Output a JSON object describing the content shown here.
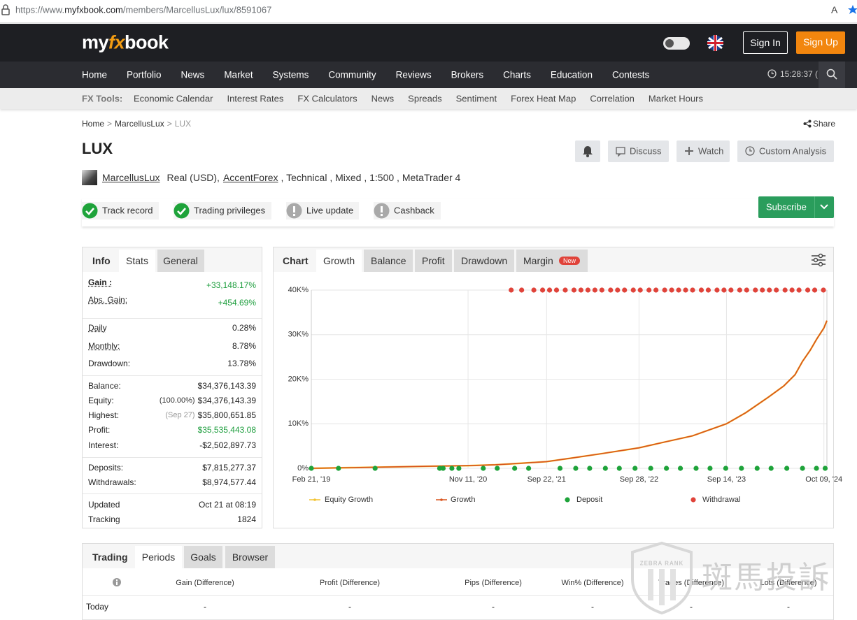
{
  "browser": {
    "url_prefix": "https://www.",
    "url_domain": "myfxbook.com",
    "url_path": "/members/MarcellusLux/lux/8591067"
  },
  "header": {
    "logo_my": "my",
    "logo_fx": "fx",
    "logo_book": "book",
    "sign_in": "Sign In",
    "sign_up": "Sign Up",
    "time": "15:28:37 ("
  },
  "nav": [
    "Home",
    "Portfolio",
    "News",
    "Market",
    "Systems",
    "Community",
    "Reviews",
    "Brokers",
    "Charts",
    "Education",
    "Contests"
  ],
  "tools": {
    "label": "FX Tools:",
    "items": [
      "Economic Calendar",
      "Interest Rates",
      "FX Calculators",
      "News",
      "Spreads",
      "Sentiment",
      "Forex Heat Map",
      "Correlation",
      "Market Hours"
    ]
  },
  "breadcrumb": [
    "Home",
    ">",
    "MarcellusLux",
    ">",
    "LUX"
  ],
  "share": "Share",
  "system": {
    "title": "LUX",
    "buttons": [
      "Discuss",
      "Watch",
      "Custom Analysis"
    ],
    "owner": "MarcellusLux",
    "details_1": "Real (USD),",
    "broker": "AccentForex",
    "details_2": ", Technical , Mixed , 1:500 , MetaTrader 4",
    "badges": [
      {
        "text": "Track record",
        "verified": true
      },
      {
        "text": "Trading privileges",
        "verified": true
      },
      {
        "text": "Live update",
        "verified": false
      },
      {
        "text": "Cashback",
        "verified": false
      }
    ],
    "subscribe": "Subscribe"
  },
  "stats": {
    "tabs": [
      "Info",
      "Stats",
      "General"
    ],
    "groups": [
      [
        {
          "label": "Gain :",
          "value": "+33,148.17%",
          "color": "#1e9e3e"
        },
        {
          "label": "Abs. Gain:",
          "value": "+454.69%",
          "color": "#1e9e3e"
        }
      ],
      [
        {
          "label": "Daily",
          "value": "0.28%"
        },
        {
          "label": "Monthly:",
          "value": "8.78%"
        },
        {
          "label": "Drawdown:",
          "value": "13.78%"
        }
      ],
      [
        {
          "label": "Balance:",
          "value": "$34,376,143.39"
        },
        {
          "label": "Equity:",
          "note": "(100.00%)",
          "value": "$34,376,143.39"
        },
        {
          "label": "Highest:",
          "note": "(Sep 27)",
          "value": "$35,800,651.85"
        },
        {
          "label": "Profit:",
          "value": "$35,535,443.08",
          "color": "#1e9e3e"
        },
        {
          "label": "Interest:",
          "value": "-$2,502,897.73"
        }
      ],
      [
        {
          "label": "Deposits:",
          "value": "$7,815,277.37"
        },
        {
          "label": "Withdrawals:",
          "value": "$8,974,577.44"
        }
      ],
      [
        {
          "label": "Updated",
          "value": "Oct 21 at 08:19"
        },
        {
          "label": "Tracking",
          "value": "1824"
        }
      ]
    ]
  },
  "chart_panel": {
    "tabs": [
      "Chart",
      "Growth",
      "Balance",
      "Profit",
      "Drawdown",
      "Margin"
    ],
    "new_badge": "New"
  },
  "chart_data": {
    "type": "line",
    "x": [
      "2019-02-21",
      "2019-08-01",
      "2020-01-01",
      "2020-06-01",
      "2020-11-11",
      "2021-03-01",
      "2021-06-01",
      "2021-09-22",
      "2022-01-01",
      "2022-05-01",
      "2022-09-28",
      "2023-01-01",
      "2023-05-01",
      "2023-09-14",
      "2023-12-01",
      "2024-03-01",
      "2024-05-01",
      "2024-06-15",
      "2024-07-15",
      "2024-08-15",
      "2024-09-10",
      "2024-10-09",
      "2024-10-21"
    ],
    "series": [
      {
        "name": "Equity Growth",
        "color": "#f2c230",
        "values": [
          0,
          150,
          300,
          450,
          600,
          800,
          1100,
          1500,
          2300,
          3300,
          4600,
          5800,
          7300,
          10000,
          12500,
          16000,
          18500,
          21000,
          24000,
          26500,
          29000,
          31500,
          33148.17
        ]
      },
      {
        "name": "Growth",
        "color": "#d9541e",
        "values": [
          0,
          150,
          300,
          450,
          600,
          800,
          1100,
          1500,
          2300,
          3300,
          4600,
          5800,
          7300,
          10000,
          12500,
          16000,
          18500,
          21000,
          24000,
          26500,
          29000,
          31500,
          33148.17
        ]
      },
      {
        "name": "Deposit",
        "color": "#1ea33a",
        "x": [
          "2019-02-21",
          "2019-06-10",
          "2019-11-04",
          "2020-07-20",
          "2020-08-03",
          "2020-09-07",
          "2020-10-05",
          "2021-01-11",
          "2021-03-08",
          "2021-05-17",
          "2021-07-12",
          "2021-11-15",
          "2022-01-17",
          "2022-03-14",
          "2022-05-16",
          "2022-07-11",
          "2022-09-12",
          "2022-11-14",
          "2023-01-16",
          "2023-03-13",
          "2023-05-15",
          "2023-07-10",
          "2023-09-11",
          "2023-11-13",
          "2024-01-15",
          "2024-03-11",
          "2024-05-13",
          "2024-07-15",
          "2024-09-09",
          "2024-10-14"
        ]
      },
      {
        "name": "Withdrawal",
        "color": "#e0433a",
        "x": [
          "2021-05-03",
          "2021-06-14",
          "2021-08-02",
          "2021-09-06",
          "2021-10-04",
          "2021-11-01",
          "2021-12-06",
          "2022-01-10",
          "2022-02-07",
          "2022-03-07",
          "2022-04-04",
          "2022-05-02",
          "2022-06-06",
          "2022-07-04",
          "2022-08-01",
          "2022-09-05",
          "2022-10-03",
          "2022-11-07",
          "2022-12-05",
          "2023-01-09",
          "2023-02-06",
          "2023-03-06",
          "2023-04-03",
          "2023-05-01",
          "2023-06-05",
          "2023-07-03",
          "2023-08-07",
          "2023-09-04",
          "2023-10-02",
          "2023-11-06",
          "2023-12-04",
          "2024-01-08",
          "2024-02-05",
          "2024-03-04",
          "2024-04-01",
          "2024-05-06",
          "2024-06-03",
          "2024-07-01",
          "2024-08-05",
          "2024-09-02",
          "2024-10-07"
        ]
      }
    ],
    "xlim": [
      "2019-02-21",
      "2024-10-21"
    ],
    "xticks": [
      {
        "value": "2019-02-21",
        "label": "Feb 21, '19"
      },
      {
        "value": "2020-11-11",
        "label": "Nov 11, '20"
      },
      {
        "value": "2021-09-22",
        "label": "Sep 22, '21"
      },
      {
        "value": "2022-09-28",
        "label": "Sep 28, '22"
      },
      {
        "value": "2023-09-14",
        "label": "Sep 14, '23"
      },
      {
        "value": "2024-10-09",
        "label": "Oct 09, '24"
      }
    ],
    "ylim": [
      0,
      40000
    ],
    "yticks": [
      {
        "value": 0,
        "label": "0%"
      },
      {
        "value": 10000,
        "label": "10K%"
      },
      {
        "value": 20000,
        "label": "20K%"
      },
      {
        "value": 30000,
        "label": "30K%"
      },
      {
        "value": 40000,
        "label": "40K%"
      }
    ],
    "grid": true
  },
  "periods": {
    "tabs": [
      "Trading",
      "Periods",
      "Goals",
      "Browser"
    ],
    "columns": [
      "Gain (Difference)",
      "Profit (Difference)",
      "Pips (Difference)",
      "Win% (Difference)",
      "Trades (Difference)",
      "Lots (Difference)"
    ],
    "rows": [
      {
        "label": "Today",
        "cells": [
          "-",
          "-",
          "-",
          "-",
          "-",
          "-"
        ]
      }
    ]
  },
  "watermark": {
    "brand": "ZEBRA RANK",
    "text": "斑馬投訴"
  }
}
